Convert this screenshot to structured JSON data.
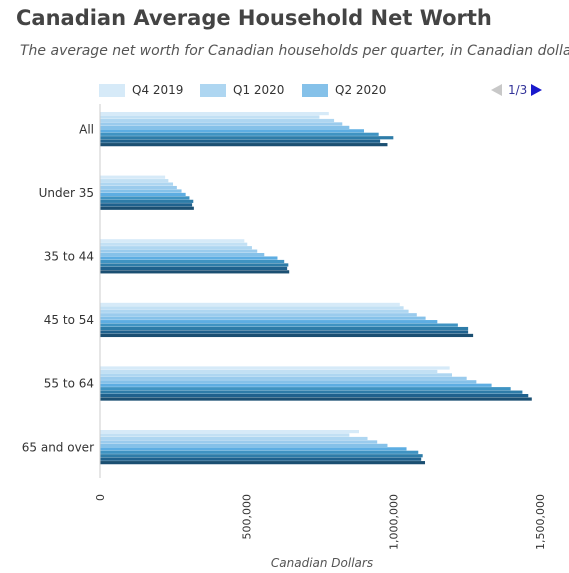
{
  "header": {
    "title": "Canadian Average Household Net Worth",
    "subtitle": "The average net worth for Canadian households per quarter, in Canadian dollars."
  },
  "legend": {
    "items": [
      {
        "label": "Q4 2019",
        "color": "#d6eaf8"
      },
      {
        "label": "Q1 2020",
        "color": "#aed6f1"
      },
      {
        "label": "Q2 2020",
        "color": "#85c1e9"
      }
    ]
  },
  "pager": {
    "text": "1/3",
    "prev_icon": "triangle-left-icon",
    "next_icon": "triangle-right-icon"
  },
  "chart_data": {
    "type": "bar",
    "orientation": "horizontal",
    "title": "Canadian Average Household Net Worth",
    "subtitle": "The average net worth for Canadian households per quarter, in Canadian dollars.",
    "xlabel": "Canadian Dollars",
    "ylabel": "",
    "xlim": [
      0,
      1500000
    ],
    "x_ticks": [
      {
        "value": 0,
        "label": "0"
      },
      {
        "value": 500000,
        "label": "500,000"
      },
      {
        "value": 1000000,
        "label": "1,000,000"
      },
      {
        "value": 1500000,
        "label": "1,500,000"
      }
    ],
    "grid": false,
    "legend_position": "top",
    "categories": [
      "All",
      "Under 35",
      "35 to 44",
      "45 to 54",
      "55 to 64",
      "65 and over"
    ],
    "series_colors": [
      "#d6eaf8",
      "#c2e0f4",
      "#aed6f1",
      "#9acbed",
      "#85c1e9",
      "#5dade2",
      "#3f93c2",
      "#2e7ca8",
      "#1f618d",
      "#1b4f72"
    ],
    "series": [
      {
        "name": "Q4 2019",
        "values": [
          780000,
          222000,
          492000,
          1022000,
          1192000,
          883000
        ]
      },
      {
        "values": [
          748000,
          233000,
          502000,
          1035000,
          1150000,
          850000
        ]
      },
      {
        "values": [
          798000,
          249000,
          518000,
          1052000,
          1200000,
          912000
        ]
      },
      {
        "values": [
          826000,
          262000,
          536000,
          1080000,
          1250000,
          945000
        ]
      },
      {
        "values": [
          850000,
          278000,
          560000,
          1110000,
          1283000,
          980000
        ]
      },
      {
        "values": [
          900000,
          292000,
          605000,
          1150000,
          1335000,
          1045000
        ]
      },
      {
        "values": [
          950000,
          305000,
          628000,
          1220000,
          1400000,
          1085000
        ]
      },
      {
        "values": [
          1000000,
          318000,
          642000,
          1255000,
          1440000,
          1100000
        ]
      },
      {
        "values": [
          955000,
          314000,
          638000,
          1255000,
          1460000,
          1095000
        ]
      },
      {
        "values": [
          980000,
          320000,
          645000,
          1272000,
          1472000,
          1108000
        ]
      }
    ]
  }
}
